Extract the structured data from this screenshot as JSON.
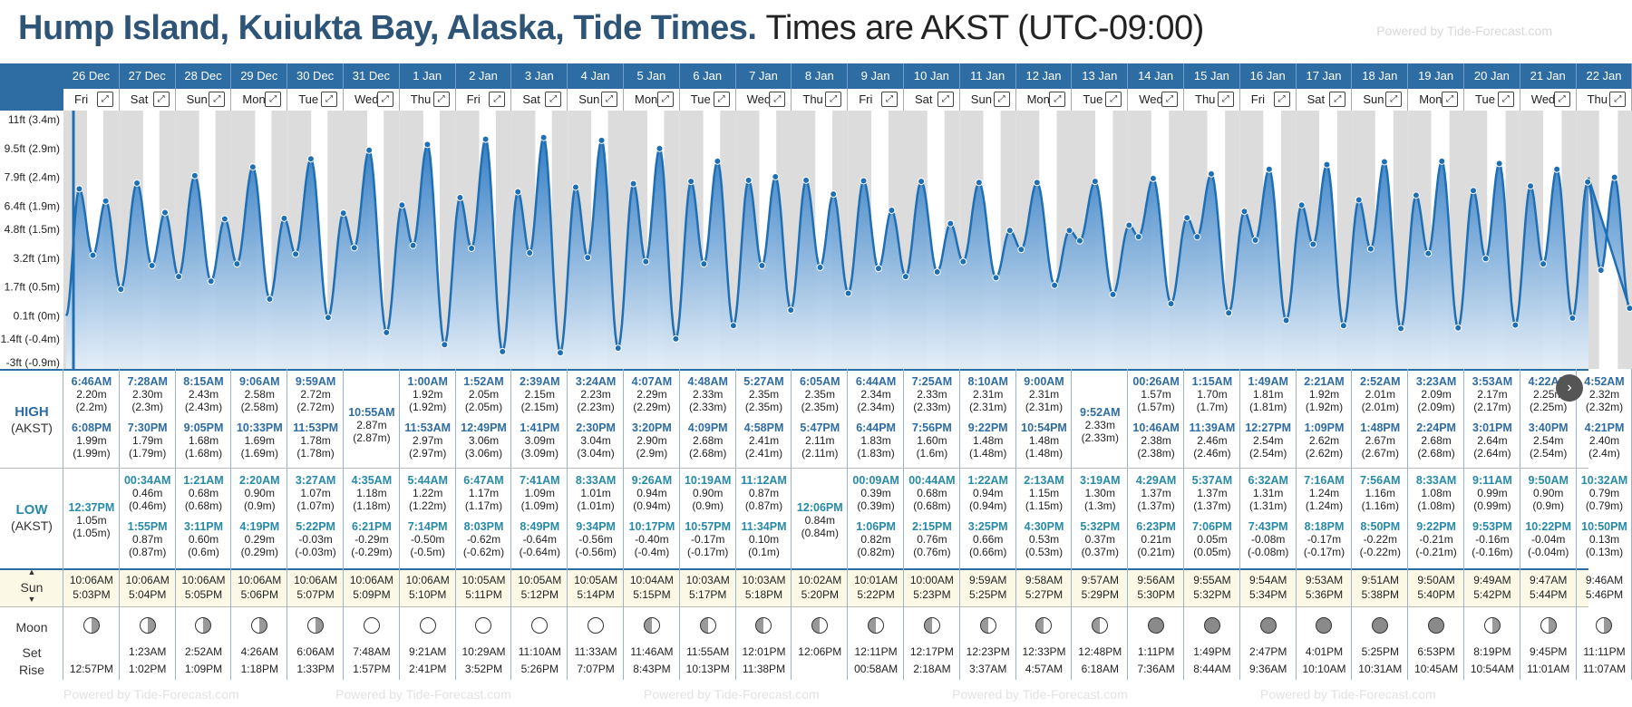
{
  "title": {
    "location": "Hump Island, Kuiukta Bay, Alaska, Tide Times.",
    "timezone": "Times are AKST (UTC-09:00)"
  },
  "powered_by": "Powered by Tide-Forecast.com",
  "labels": {
    "high": "HIGH",
    "high_tz": "(AKST)",
    "low": "LOW",
    "low_tz": "(AKST)",
    "sun": "Sun",
    "moon": "Moon",
    "set": "Set",
    "rise": "Rise"
  },
  "y_axis_labels": [
    "11ft (3.4m)",
    "9.5ft (2.9m)",
    "7.9ft (2.4m)",
    "6.4ft (1.9m)",
    "4.8ft (1.5m)",
    "3.2ft (1m)",
    "1.7ft (0.5m)",
    "0.1ft (0m)",
    "-1.4ft (-0.4m)",
    "-3ft (-0.9m)"
  ],
  "days": [
    {
      "date": "26 Dec",
      "dow": "Fri",
      "hi": [
        [
          "6:46AM",
          "2.20m",
          "(2.2m)"
        ],
        [
          "6:08PM",
          "1.99m",
          "(1.99m)"
        ]
      ],
      "lo": [
        [
          "12:37PM",
          "1.05m",
          "(1.05m)"
        ]
      ],
      "sunrise": "10:06AM",
      "sunset": "5:03PM",
      "moon_set": "",
      "moon_rise": "12:57PM",
      "moon": "waxing"
    },
    {
      "date": "27 Dec",
      "dow": "Sat",
      "hi": [
        [
          "7:28AM",
          "2.30m",
          "(2.3m)"
        ],
        [
          "7:30PM",
          "1.79m",
          "(1.79m)"
        ]
      ],
      "lo": [
        [
          "00:34AM",
          "0.46m",
          "(0.46m)"
        ],
        [
          "1:55PM",
          "0.87m",
          "(0.87m)"
        ]
      ],
      "sunrise": "10:06AM",
      "sunset": "5:04PM",
      "moon_set": "1:23AM",
      "moon_rise": "1:02PM",
      "moon": "waxing"
    },
    {
      "date": "28 Dec",
      "dow": "Sun",
      "hi": [
        [
          "8:15AM",
          "2.43m",
          "(2.43m)"
        ],
        [
          "9:05PM",
          "1.68m",
          "(1.68m)"
        ]
      ],
      "lo": [
        [
          "1:21AM",
          "0.68m",
          "(0.68m)"
        ],
        [
          "3:11PM",
          "0.60m",
          "(0.6m)"
        ]
      ],
      "sunrise": "10:06AM",
      "sunset": "5:05PM",
      "moon_set": "2:52AM",
      "moon_rise": "1:09PM",
      "moon": "waxing"
    },
    {
      "date": "29 Dec",
      "dow": "Mon",
      "hi": [
        [
          "9:06AM",
          "2.58m",
          "(2.58m)"
        ],
        [
          "10:33PM",
          "1.69m",
          "(1.69m)"
        ]
      ],
      "lo": [
        [
          "2:20AM",
          "0.90m",
          "(0.9m)"
        ],
        [
          "4:19PM",
          "0.29m",
          "(0.29m)"
        ]
      ],
      "sunrise": "10:06AM",
      "sunset": "5:06PM",
      "moon_set": "4:26AM",
      "moon_rise": "1:18PM",
      "moon": "waxing"
    },
    {
      "date": "30 Dec",
      "dow": "Tue",
      "hi": [
        [
          "9:59AM",
          "2.72m",
          "(2.72m)"
        ],
        [
          "11:53PM",
          "1.78m",
          "(1.78m)"
        ]
      ],
      "lo": [
        [
          "3:27AM",
          "1.07m",
          "(1.07m)"
        ],
        [
          "5:22PM",
          "-0.03m",
          "(-0.03m)"
        ]
      ],
      "sunrise": "10:06AM",
      "sunset": "5:07PM",
      "moon_set": "6:06AM",
      "moon_rise": "1:33PM",
      "moon": "waxing"
    },
    {
      "date": "31 Dec",
      "dow": "Wed",
      "hi": [
        [
          "10:55AM",
          "2.87m",
          "(2.87m)"
        ]
      ],
      "lo": [
        [
          "4:35AM",
          "1.18m",
          "(1.18m)"
        ],
        [
          "6:21PM",
          "-0.29m",
          "(-0.29m)"
        ]
      ],
      "sunrise": "10:06AM",
      "sunset": "5:09PM",
      "moon_set": "7:48AM",
      "moon_rise": "1:57PM",
      "moon": "full"
    },
    {
      "date": "1 Jan",
      "dow": "Thu",
      "hi": [
        [
          "1:00AM",
          "1.92m",
          "(1.92m)"
        ],
        [
          "11:53AM",
          "2.97m",
          "(2.97m)"
        ]
      ],
      "lo": [
        [
          "5:44AM",
          "1.22m",
          "(1.22m)"
        ],
        [
          "7:14PM",
          "-0.50m",
          "(-0.5m)"
        ]
      ],
      "sunrise": "10:06AM",
      "sunset": "5:10PM",
      "moon_set": "9:21AM",
      "moon_rise": "2:41PM",
      "moon": "full"
    },
    {
      "date": "2 Jan",
      "dow": "Fri",
      "hi": [
        [
          "1:52AM",
          "2.05m",
          "(2.05m)"
        ],
        [
          "12:49PM",
          "3.06m",
          "(3.06m)"
        ]
      ],
      "lo": [
        [
          "6:47AM",
          "1.17m",
          "(1.17m)"
        ],
        [
          "8:03PM",
          "-0.62m",
          "(-0.62m)"
        ]
      ],
      "sunrise": "10:05AM",
      "sunset": "5:11PM",
      "moon_set": "10:29AM",
      "moon_rise": "3:52PM",
      "moon": "full"
    },
    {
      "date": "3 Jan",
      "dow": "Sat",
      "hi": [
        [
          "2:39AM",
          "2.15m",
          "(2.15m)"
        ],
        [
          "1:41PM",
          "3.09m",
          "(3.09m)"
        ]
      ],
      "lo": [
        [
          "7:41AM",
          "1.09m",
          "(1.09m)"
        ],
        [
          "8:49PM",
          "-0.64m",
          "(-0.64m)"
        ]
      ],
      "sunrise": "10:05AM",
      "sunset": "5:12PM",
      "moon_set": "11:10AM",
      "moon_rise": "5:26PM",
      "moon": "full"
    },
    {
      "date": "4 Jan",
      "dow": "Sun",
      "hi": [
        [
          "3:24AM",
          "2.23m",
          "(2.23m)"
        ],
        [
          "2:30PM",
          "3.04m",
          "(3.04m)"
        ]
      ],
      "lo": [
        [
          "8:33AM",
          "1.01m",
          "(1.01m)"
        ],
        [
          "9:34PM",
          "-0.56m",
          "(-0.56m)"
        ]
      ],
      "sunrise": "10:05AM",
      "sunset": "5:14PM",
      "moon_set": "11:33AM",
      "moon_rise": "7:07PM",
      "moon": "full"
    },
    {
      "date": "5 Jan",
      "dow": "Mon",
      "hi": [
        [
          "4:07AM",
          "2.29m",
          "(2.29m)"
        ],
        [
          "3:20PM",
          "2.90m",
          "(2.9m)"
        ]
      ],
      "lo": [
        [
          "9:26AM",
          "0.94m",
          "(0.94m)"
        ],
        [
          "10:17PM",
          "-0.40m",
          "(-0.4m)"
        ]
      ],
      "sunrise": "10:04AM",
      "sunset": "5:15PM",
      "moon_set": "11:46AM",
      "moon_rise": "8:43PM",
      "moon": "waning"
    },
    {
      "date": "6 Jan",
      "dow": "Tue",
      "hi": [
        [
          "4:48AM",
          "2.33m",
          "(2.33m)"
        ],
        [
          "4:09PM",
          "2.68m",
          "(2.68m)"
        ]
      ],
      "lo": [
        [
          "10:19AM",
          "0.90m",
          "(0.9m)"
        ],
        [
          "10:57PM",
          "-0.17m",
          "(-0.17m)"
        ]
      ],
      "sunrise": "10:03AM",
      "sunset": "5:17PM",
      "moon_set": "11:55AM",
      "moon_rise": "10:13PM",
      "moon": "waning"
    },
    {
      "date": "7 Jan",
      "dow": "Wed",
      "hi": [
        [
          "5:27AM",
          "2.35m",
          "(2.35m)"
        ],
        [
          "4:58PM",
          "2.41m",
          "(2.41m)"
        ]
      ],
      "lo": [
        [
          "11:12AM",
          "0.87m",
          "(0.87m)"
        ],
        [
          "11:34PM",
          "0.10m",
          "(0.1m)"
        ]
      ],
      "sunrise": "10:03AM",
      "sunset": "5:18PM",
      "moon_set": "12:01PM",
      "moon_rise": "11:38PM",
      "moon": "waning"
    },
    {
      "date": "8 Jan",
      "dow": "Thu",
      "hi": [
        [
          "6:05AM",
          "2.35m",
          "(2.35m)"
        ],
        [
          "5:47PM",
          "2.11m",
          "(2.11m)"
        ]
      ],
      "lo": [
        [
          "12:06PM",
          "0.84m",
          "(0.84m)"
        ]
      ],
      "sunrise": "10:02AM",
      "sunset": "5:20PM",
      "moon_set": "12:06PM",
      "moon_rise": "",
      "moon": "waning"
    },
    {
      "date": "9 Jan",
      "dow": "Fri",
      "hi": [
        [
          "6:44AM",
          "2.34m",
          "(2.34m)"
        ],
        [
          "6:44PM",
          "1.83m",
          "(1.83m)"
        ]
      ],
      "lo": [
        [
          "00:09AM",
          "0.39m",
          "(0.39m)"
        ],
        [
          "1:06PM",
          "0.82m",
          "(0.82m)"
        ]
      ],
      "sunrise": "10:01AM",
      "sunset": "5:22PM",
      "moon_set": "12:11PM",
      "moon_rise": "00:58AM",
      "moon": "waning"
    },
    {
      "date": "10 Jan",
      "dow": "Sat",
      "hi": [
        [
          "7:25AM",
          "2.33m",
          "(2.33m)"
        ],
        [
          "7:56PM",
          "1.60m",
          "(1.6m)"
        ]
      ],
      "lo": [
        [
          "00:44AM",
          "0.68m",
          "(0.68m)"
        ],
        [
          "2:15PM",
          "0.76m",
          "(0.76m)"
        ]
      ],
      "sunrise": "10:00AM",
      "sunset": "5:23PM",
      "moon_set": "12:17PM",
      "moon_rise": "2:18AM",
      "moon": "waning"
    },
    {
      "date": "11 Jan",
      "dow": "Sun",
      "hi": [
        [
          "8:10AM",
          "2.31m",
          "(2.31m)"
        ],
        [
          "9:22PM",
          "1.48m",
          "(1.48m)"
        ]
      ],
      "lo": [
        [
          "1:22AM",
          "0.94m",
          "(0.94m)"
        ],
        [
          "3:25PM",
          "0.66m",
          "(0.66m)"
        ]
      ],
      "sunrise": "9:59AM",
      "sunset": "5:25PM",
      "moon_set": "12:23PM",
      "moon_rise": "3:37AM",
      "moon": "waning"
    },
    {
      "date": "12 Jan",
      "dow": "Mon",
      "hi": [
        [
          "9:00AM",
          "2.31m",
          "(2.31m)"
        ],
        [
          "10:54PM",
          "1.48m",
          "(1.48m)"
        ]
      ],
      "lo": [
        [
          "2:13AM",
          "1.15m",
          "(1.15m)"
        ],
        [
          "4:30PM",
          "0.53m",
          "(0.53m)"
        ]
      ],
      "sunrise": "9:58AM",
      "sunset": "5:27PM",
      "moon_set": "12:33PM",
      "moon_rise": "4:57AM",
      "moon": "waning"
    },
    {
      "date": "13 Jan",
      "dow": "Tue",
      "hi": [
        [
          "9:52AM",
          "2.33m",
          "(2.33m)"
        ]
      ],
      "lo": [
        [
          "3:19AM",
          "1.30m",
          "(1.3m)"
        ],
        [
          "5:32PM",
          "0.37m",
          "(0.37m)"
        ]
      ],
      "sunrise": "9:57AM",
      "sunset": "5:29PM",
      "moon_set": "12:48PM",
      "moon_rise": "6:18AM",
      "moon": "waning"
    },
    {
      "date": "14 Jan",
      "dow": "Wed",
      "hi": [
        [
          "00:26AM",
          "1.57m",
          "(1.57m)"
        ],
        [
          "10:46AM",
          "2.38m",
          "(2.38m)"
        ]
      ],
      "lo": [
        [
          "4:29AM",
          "1.37m",
          "(1.37m)"
        ],
        [
          "6:23PM",
          "0.21m",
          "(0.21m)"
        ]
      ],
      "sunrise": "9:56AM",
      "sunset": "5:30PM",
      "moon_set": "1:11PM",
      "moon_rise": "7:36AM",
      "moon": "new"
    },
    {
      "date": "15 Jan",
      "dow": "Thu",
      "hi": [
        [
          "1:15AM",
          "1.70m",
          "(1.7m)"
        ],
        [
          "11:39AM",
          "2.46m",
          "(2.46m)"
        ]
      ],
      "lo": [
        [
          "5:37AM",
          "1.37m",
          "(1.37m)"
        ],
        [
          "7:06PM",
          "0.05m",
          "(0.05m)"
        ]
      ],
      "sunrise": "9:55AM",
      "sunset": "5:32PM",
      "moon_set": "1:49PM",
      "moon_rise": "8:44AM",
      "moon": "new"
    },
    {
      "date": "16 Jan",
      "dow": "Fri",
      "hi": [
        [
          "1:49AM",
          "1.81m",
          "(1.81m)"
        ],
        [
          "12:27PM",
          "2.54m",
          "(2.54m)"
        ]
      ],
      "lo": [
        [
          "6:32AM",
          "1.31m",
          "(1.31m)"
        ],
        [
          "7:43PM",
          "-0.08m",
          "(-0.08m)"
        ]
      ],
      "sunrise": "9:54AM",
      "sunset": "5:34PM",
      "moon_set": "2:47PM",
      "moon_rise": "9:36AM",
      "moon": "new"
    },
    {
      "date": "17 Jan",
      "dow": "Sat",
      "hi": [
        [
          "2:21AM",
          "1.92m",
          "(1.92m)"
        ],
        [
          "1:09PM",
          "2.62m",
          "(2.62m)"
        ]
      ],
      "lo": [
        [
          "7:16AM",
          "1.24m",
          "(1.24m)"
        ],
        [
          "8:18PM",
          "-0.17m",
          "(-0.17m)"
        ]
      ],
      "sunrise": "9:53AM",
      "sunset": "5:36PM",
      "moon_set": "4:01PM",
      "moon_rise": "10:10AM",
      "moon": "new"
    },
    {
      "date": "18 Jan",
      "dow": "Sun",
      "hi": [
        [
          "2:52AM",
          "2.01m",
          "(2.01m)"
        ],
        [
          "1:48PM",
          "2.67m",
          "(2.67m)"
        ]
      ],
      "lo": [
        [
          "7:56AM",
          "1.16m",
          "(1.16m)"
        ],
        [
          "8:50PM",
          "-0.22m",
          "(-0.22m)"
        ]
      ],
      "sunrise": "9:51AM",
      "sunset": "5:38PM",
      "moon_set": "5:25PM",
      "moon_rise": "10:31AM",
      "moon": "new"
    },
    {
      "date": "19 Jan",
      "dow": "Mon",
      "hi": [
        [
          "3:23AM",
          "2.09m",
          "(2.09m)"
        ],
        [
          "2:24PM",
          "2.68m",
          "(2.68m)"
        ]
      ],
      "lo": [
        [
          "8:33AM",
          "1.08m",
          "(1.08m)"
        ],
        [
          "9:22PM",
          "-0.21m",
          "(-0.21m)"
        ]
      ],
      "sunrise": "9:50AM",
      "sunset": "5:40PM",
      "moon_set": "6:53PM",
      "moon_rise": "10:45AM",
      "moon": "new"
    },
    {
      "date": "20 Jan",
      "dow": "Tue",
      "hi": [
        [
          "3:53AM",
          "2.17m",
          "(2.17m)"
        ],
        [
          "3:01PM",
          "2.64m",
          "(2.64m)"
        ]
      ],
      "lo": [
        [
          "9:11AM",
          "0.99m",
          "(0.99m)"
        ],
        [
          "9:53PM",
          "-0.16m",
          "(-0.16m)"
        ]
      ],
      "sunrise": "9:49AM",
      "sunset": "5:42PM",
      "moon_set": "8:19PM",
      "moon_rise": "10:54AM",
      "moon": "waxing"
    },
    {
      "date": "21 Jan",
      "dow": "Wed",
      "hi": [
        [
          "4:22AM",
          "2.25m",
          "(2.25m)"
        ],
        [
          "3:40PM",
          "2.54m",
          "(2.54m)"
        ]
      ],
      "lo": [
        [
          "9:50AM",
          "0.90m",
          "(0.9m)"
        ],
        [
          "10:22PM",
          "-0.04m",
          "(-0.04m)"
        ]
      ],
      "sunrise": "9:47AM",
      "sunset": "5:44PM",
      "moon_set": "9:45PM",
      "moon_rise": "11:01AM",
      "moon": "waxing"
    },
    {
      "date": "22 Jan",
      "dow": "Thu",
      "hi": [
        [
          "4:52AM",
          "2.32m",
          "(2.32m)"
        ],
        [
          "4:21PM",
          "2.40m",
          "(2.4m)"
        ]
      ],
      "lo": [
        [
          "10:32AM",
          "0.79m",
          "(0.79m)"
        ],
        [
          "10:50PM",
          "0.13m",
          "(0.13m)"
        ]
      ],
      "sunrise": "9:46AM",
      "sunset": "5:46PM",
      "moon_set": "11:11PM",
      "moon_rise": "11:07AM",
      "moon": "waxing"
    }
  ]
}
